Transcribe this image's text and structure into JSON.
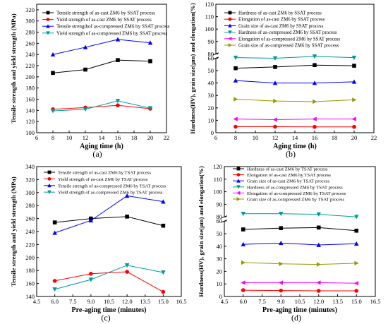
{
  "chart_data": [
    {
      "panel": "(a)",
      "type": "line",
      "xlabel": "Aging time (h)",
      "ylabel": "Tensile strength and yield strength (MPa)",
      "xlim": [
        6,
        22
      ],
      "ylim": [
        100,
        330
      ],
      "xticks": [
        6,
        8,
        10,
        12,
        14,
        16,
        18,
        20,
        22
      ],
      "yticks": [
        100,
        120,
        140,
        160,
        180,
        200,
        220,
        240,
        260,
        280,
        300,
        320
      ],
      "xtick_labels": [
        "6",
        "8",
        "10",
        "12",
        "14",
        "16",
        "18",
        "20",
        "22"
      ],
      "ytick_labels": [
        "100",
        "120",
        "140",
        "160",
        "180",
        "200",
        "220",
        "240",
        "260",
        "280",
        "300",
        "320"
      ],
      "legend_position": "top-left",
      "series": [
        {
          "name": "Tensile strength of as-cast ZM6 by SSAT process",
          "color": "#000000",
          "marker": "square",
          "x": [
            8,
            12,
            16,
            20
          ],
          "values": [
            207,
            213,
            230,
            228
          ]
        },
        {
          "name": "Yield strength of as-cast ZM6 by SSAT process",
          "color": "#ff0000",
          "marker": "circle",
          "x": [
            8,
            12,
            16,
            20
          ],
          "values": [
            142,
            145,
            149,
            143
          ]
        },
        {
          "name": "Tensile strengthof as-compressed ZM6 by SSAT process",
          "color": "#0000ff",
          "marker": "triangle-up",
          "x": [
            8,
            12,
            16,
            20
          ],
          "values": [
            240,
            253,
            267,
            261
          ]
        },
        {
          "name": "Yield strength of as-compressed ZM6 by SSAT process",
          "color": "#009999",
          "marker": "triangle-down",
          "x": [
            8,
            12,
            16,
            20
          ],
          "values": [
            139,
            142,
            157,
            144
          ]
        }
      ]
    },
    {
      "panel": "(b)",
      "type": "line",
      "xlabel": "Aging time (h)",
      "ylabel": "Hardness(HV), grain size(μm) and elongation(%)",
      "xlim": [
        6,
        22
      ],
      "ylim": [
        0,
        120
      ],
      "axis_break": [
        60,
        80
      ],
      "xticks": [
        6,
        8,
        10,
        12,
        14,
        16,
        18,
        20,
        22
      ],
      "yticks": [
        0,
        10,
        20,
        30,
        40,
        50,
        60,
        80,
        90,
        100,
        110,
        120
      ],
      "xtick_labels": [
        "6",
        "8",
        "10",
        "12",
        "14",
        "16",
        "18",
        "20",
        "22"
      ],
      "ytick_labels": [
        "0",
        "10",
        "20",
        "30",
        "40",
        "50",
        "60",
        "80",
        "90",
        "100",
        "110",
        "120"
      ],
      "legend_position": "top-left",
      "series": [
        {
          "name": "Hardness of as-cast ZM6 by SSAT process",
          "color": "#000000",
          "marker": "square",
          "x": [
            8,
            12,
            16,
            20
          ],
          "values": [
            68.5,
            69.5,
            71,
            70.5
          ]
        },
        {
          "name": "Elongation of as-cast ZM6 by SSAT process",
          "color": "#ff0000",
          "marker": "circle",
          "x": [
            8,
            12,
            16,
            20
          ],
          "values": [
            4.8,
            4.8,
            4.7,
            4.7
          ]
        },
        {
          "name": "Grain size of as-cast ZM6 by SSAT process",
          "color": "#0000ff",
          "marker": "triangle-up",
          "x": [
            8,
            12,
            16,
            20
          ],
          "values": [
            42,
            40,
            40,
            41
          ]
        },
        {
          "name": "Hardness of as-compressed ZM6 by SSAT process",
          "color": "#009999",
          "marker": "triangle-down",
          "x": [
            8,
            12,
            16,
            20
          ],
          "values": [
            77,
            76.5,
            78,
            77
          ]
        },
        {
          "name": "Elongation of as-compressed ZM6 by SSAT process",
          "color": "#ff00ff",
          "marker": "triangle-left",
          "x": [
            8,
            12,
            16,
            20
          ],
          "values": [
            11,
            10.5,
            11,
            11
          ]
        },
        {
          "name": "Grain size of as-compressed ZM6 by SSAT process",
          "color": "#999900",
          "marker": "triangle-right",
          "x": [
            8,
            12,
            16,
            20
          ],
          "values": [
            27,
            25.5,
            25,
            26.5
          ]
        }
      ]
    },
    {
      "panel": "(c)",
      "type": "line",
      "xlabel": "Pre-aging time (minutes)",
      "ylabel": "Tensile strength and yield strength (MPa)",
      "xlim": [
        4.5,
        16.5
      ],
      "ylim": [
        140,
        340
      ],
      "xticks": [
        4.5,
        6,
        7.5,
        9,
        10.5,
        12,
        13.5,
        15,
        16.5
      ],
      "yticks": [
        140,
        160,
        180,
        200,
        220,
        240,
        260,
        280,
        300,
        320,
        340
      ],
      "xtick_labels": [
        "4.5",
        "6.0",
        "7.5",
        "9.0",
        "10.5",
        "12.0",
        "13.5",
        "15.0",
        "16.5"
      ],
      "ytick_labels": [
        "140",
        "160",
        "180",
        "200",
        "220",
        "240",
        "260",
        "280",
        "300",
        "320",
        "340"
      ],
      "legend_position": "top-left",
      "series": [
        {
          "name": "Tensile strength of as-cast ZM6 by TSAT process",
          "color": "#000000",
          "marker": "square",
          "x": [
            6,
            9,
            12,
            15
          ],
          "values": [
            254,
            260,
            263,
            249
          ]
        },
        {
          "name": "Yield strength of as-cast ZM6 by TSAT process",
          "color": "#ff0000",
          "marker": "circle",
          "x": [
            6,
            9,
            12,
            15
          ],
          "values": [
            164,
            175,
            178,
            147
          ]
        },
        {
          "name": "Tensile strength of as-compressed ZM6 by TSAT process",
          "color": "#0000ff",
          "marker": "triangle-up",
          "x": [
            6,
            9,
            12,
            15
          ],
          "values": [
            238,
            257,
            295,
            286
          ]
        },
        {
          "name": "Yield strength of as-compressed ZM6 by TSAT process",
          "color": "#009999",
          "marker": "triangle-down",
          "x": [
            6,
            9,
            12,
            15
          ],
          "values": [
            151,
            166,
            188,
            177
          ]
        }
      ]
    },
    {
      "panel": "(d)",
      "type": "line",
      "xlabel": "Pre-aging time (minutes)",
      "ylabel": "Hardness(HV), grain size(μm) and elongation(%)",
      "xlim": [
        4.5,
        16.5
      ],
      "ylim": [
        0,
        120
      ],
      "axis_break": [
        60,
        80
      ],
      "xticks": [
        4.5,
        6,
        7.5,
        9,
        10.5,
        12,
        13.5,
        15,
        16.5
      ],
      "yticks": [
        0,
        10,
        20,
        30,
        40,
        50,
        60,
        80,
        90,
        100,
        110,
        120
      ],
      "xtick_labels": [
        "4.5",
        "6.0",
        "7.5",
        "9.0",
        "10.5",
        "12.0",
        "13.5",
        "15.0",
        "16.5"
      ],
      "ytick_labels": [
        "0",
        "10",
        "20",
        "30",
        "40",
        "50",
        "60",
        "80",
        "90",
        "100",
        "110",
        "120"
      ],
      "legend_position": "top-left",
      "series": [
        {
          "name": "Hardness of as-cast ZM6 by TSAT process",
          "color": "#000000",
          "marker": "square",
          "x": [
            6,
            9,
            12,
            15
          ],
          "values": [
            70,
            71,
            71.5,
            69
          ]
        },
        {
          "name": "Elongation of as-cast ZM6 by TSAT process",
          "color": "#ff0000",
          "marker": "circle",
          "x": [
            6,
            9,
            12,
            15
          ],
          "values": [
            5,
            4.7,
            4.5,
            4.5
          ]
        },
        {
          "name": "Grain size of as-cast ZM6 by TSAT process",
          "color": "#0000ff",
          "marker": "triangle-up",
          "x": [
            6,
            9,
            12,
            15
          ],
          "values": [
            41.5,
            42.5,
            41,
            42
          ]
        },
        {
          "name": "Hardness of as-compressed ZM6 by TSAT process",
          "color": "#009999",
          "marker": "triangle-down",
          "x": [
            6,
            9,
            12,
            15
          ],
          "values": [
            82.5,
            82.5,
            82,
            80
          ]
        },
        {
          "name": "Elongation of as-compressed ZM6 by TSAT process",
          "color": "#ff00ff",
          "marker": "triangle-left",
          "x": [
            6,
            9,
            12,
            15
          ],
          "values": [
            11,
            11,
            11,
            10.5
          ]
        },
        {
          "name": "Grain size of as-compressed ZM6 by TSAT process",
          "color": "#999900",
          "marker": "triangle-right",
          "x": [
            6,
            9,
            12,
            15
          ],
          "values": [
            27,
            26,
            25.5,
            26.5
          ]
        }
      ]
    }
  ]
}
